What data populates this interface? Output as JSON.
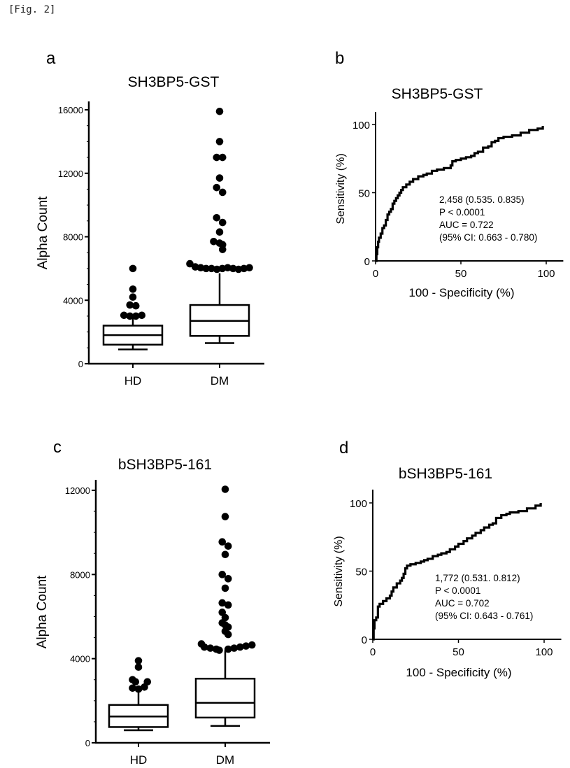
{
  "figure_label": "[Fig. 2]",
  "chart_data": [
    {
      "panel": "a",
      "type": "box",
      "title": "SH3BP5-GST",
      "xlabel": "",
      "ylabel": "Alpha Count",
      "categories": [
        "HD",
        "DM"
      ],
      "ylim": [
        0,
        16000
      ],
      "yticks": [
        0,
        4000,
        8000,
        12000,
        16000
      ],
      "yticklabels": [
        "0",
        "4000",
        "8000",
        "12000",
        "16000"
      ],
      "series": [
        {
          "name": "HD",
          "whisker_low": 900,
          "q1": 1200,
          "median": 1800,
          "q3": 2400,
          "whisker_high": 3000,
          "outliers": [
            6000,
            4700,
            4200,
            3700,
            3650,
            3050,
            3000,
            3000,
            3050
          ]
        },
        {
          "name": "DM",
          "whisker_low": 1300,
          "q1": 1750,
          "median": 2700,
          "q3": 3700,
          "whisker_high": 5700,
          "outliers": [
            15900,
            14000,
            13000,
            13000,
            11700,
            11100,
            10800,
            9200,
            8900,
            8300,
            7700,
            7600,
            7500,
            7200,
            6300,
            6100,
            6050,
            6000,
            6000,
            5950,
            6000,
            6050,
            6000,
            5950,
            6000,
            6050
          ]
        }
      ]
    },
    {
      "panel": "b",
      "type": "line",
      "title": "SH3BP5-GST",
      "xlabel": "100 - Specificity (%)",
      "ylabel": "Sensitivity (%)",
      "xlim": [
        0,
        110
      ],
      "ylim": [
        0,
        100
      ],
      "xticks": [
        0,
        50,
        100
      ],
      "yticks": [
        0,
        50,
        100
      ],
      "x": [
        0,
        0.5,
        1,
        1.5,
        2,
        3,
        4,
        5,
        6,
        7,
        8,
        9,
        10,
        11,
        12,
        13,
        14,
        15,
        16,
        18,
        20,
        22,
        25,
        28,
        30,
        33,
        36,
        40,
        42,
        44,
        45,
        47,
        50,
        53,
        56,
        58,
        60,
        63,
        66,
        68,
        70,
        72,
        75,
        80,
        85,
        90,
        95,
        98
      ],
      "y": [
        0,
        5,
        10,
        14,
        17,
        20,
        24,
        26,
        30,
        34,
        36,
        38,
        42,
        44,
        46,
        48,
        50,
        52,
        54,
        56,
        58,
        60,
        62,
        63,
        64,
        66,
        67,
        68,
        68,
        70,
        73,
        74,
        75,
        76,
        77,
        79,
        80,
        83,
        84,
        87,
        88,
        90,
        91,
        92,
        94,
        96,
        97,
        99
      ],
      "annotations": [
        "2,458 (0.535. 0.835)",
        "P < 0.0001",
        "AUC = 0.722",
        "(95% CI: 0.663 - 0.780)"
      ]
    },
    {
      "panel": "c",
      "type": "box",
      "title": "bSH3BP5-161",
      "xlabel": "",
      "ylabel": "Alpha Count",
      "categories": [
        "HD",
        "DM"
      ],
      "ylim": [
        0,
        12000
      ],
      "yticks": [
        0,
        4000,
        8000,
        12000
      ],
      "yticklabels": [
        "0",
        "4000",
        "8000",
        "12000"
      ],
      "series": [
        {
          "name": "HD",
          "whisker_low": 600,
          "q1": 750,
          "median": 1250,
          "q3": 1800,
          "whisker_high": 2600,
          "outliers": [
            3900,
            3600,
            3000,
            2900,
            2600,
            2550,
            2650,
            2900
          ]
        },
        {
          "name": "DM",
          "whisker_low": 800,
          "q1": 1200,
          "median": 1900,
          "q3": 3050,
          "whisker_high": 4400,
          "outliers": [
            12050,
            10750,
            9550,
            9350,
            8950,
            8000,
            7800,
            7350,
            6650,
            6550,
            6200,
            5950,
            5700,
            5600,
            5500,
            5300,
            5150,
            4700,
            4550,
            4500,
            4450,
            4400,
            4450,
            4500,
            4550,
            4600,
            4650
          ]
        }
      ]
    },
    {
      "panel": "d",
      "type": "line",
      "title": "bSH3BP5-161",
      "xlabel": "100 - Specificity (%)",
      "ylabel": "Sensitivity (%)",
      "xlim": [
        0,
        110
      ],
      "ylim": [
        0,
        100
      ],
      "xticks": [
        0,
        50,
        100
      ],
      "yticks": [
        0,
        50,
        100
      ],
      "x": [
        0,
        0.5,
        1,
        2,
        3,
        4,
        6,
        8,
        10,
        11,
        12,
        14,
        16,
        17,
        18,
        19,
        20,
        22,
        25,
        28,
        30,
        32,
        35,
        38,
        40,
        43,
        45,
        48,
        50,
        53,
        55,
        58,
        60,
        63,
        65,
        68,
        70,
        72,
        75,
        78,
        80,
        85,
        90,
        95,
        98
      ],
      "y": [
        0,
        8,
        14,
        16,
        24,
        26,
        28,
        30,
        32,
        35,
        38,
        41,
        43,
        45,
        48,
        52,
        54,
        55,
        56,
        57,
        58,
        59,
        61,
        62,
        63,
        64,
        66,
        68,
        70,
        72,
        74,
        76,
        78,
        80,
        82,
        84,
        85,
        89,
        91,
        92,
        93,
        94,
        96,
        98,
        100
      ],
      "annotations": [
        "1,772 (0.531. 0.812)",
        "P < 0.0001",
        "AUC = 0.702",
        "(95% CI: 0.643 - 0.761)"
      ]
    }
  ]
}
